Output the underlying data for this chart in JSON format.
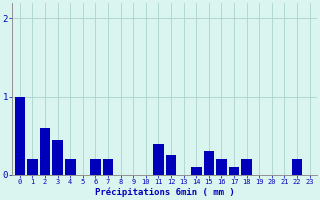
{
  "hours": [
    0,
    1,
    2,
    3,
    4,
    5,
    6,
    7,
    8,
    9,
    10,
    11,
    12,
    13,
    14,
    15,
    16,
    17,
    18,
    19,
    20,
    21,
    22,
    23
  ],
  "values": [
    1.0,
    0.2,
    0.6,
    0.45,
    0.2,
    0.0,
    0.2,
    0.2,
    0.0,
    0.0,
    0.0,
    0.4,
    0.25,
    0.0,
    0.1,
    0.3,
    0.2,
    0.1,
    0.2,
    0.0,
    0.0,
    0.0,
    0.2,
    0.0
  ],
  "bar_color": "#0000bb",
  "bg_color": "#daf5f0",
  "grid_color": "#aad4cc",
  "xlabel": "Précipitations 6min ( mm )",
  "xlabel_color": "#0000bb",
  "tick_color": "#0000bb",
  "axis_color": "#909090",
  "ylim_max": 2.2,
  "yticks": [
    0,
    1,
    2
  ],
  "bar_width": 0.85
}
